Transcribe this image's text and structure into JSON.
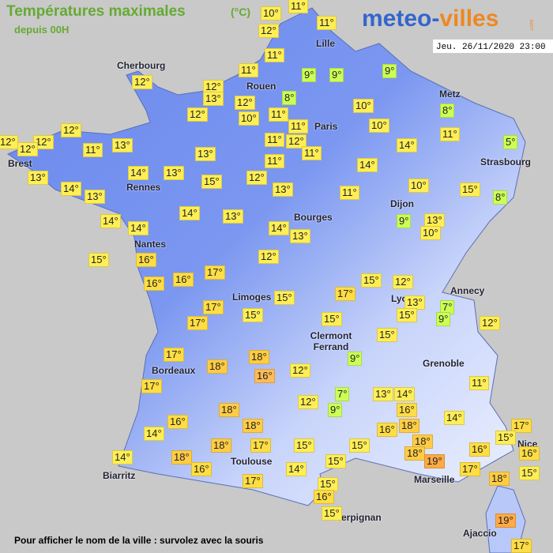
{
  "header": {
    "title": "Températures maximales",
    "unit": "(°C)",
    "subtitle": "depuis 00H"
  },
  "logo": {
    "part1": "meteo-",
    "part2": "villes",
    "suffix": ".com"
  },
  "date": "Jeu. 26/11/2020 23:00",
  "cities": [
    {
      "name": "Cherbourg"
    },
    {
      "name": "Rouen"
    },
    {
      "name": "Lille"
    },
    {
      "name": "Paris"
    },
    {
      "name": "Metz"
    },
    {
      "name": "Strasbourg"
    },
    {
      "name": "Brest"
    },
    {
      "name": "Rennes"
    },
    {
      "name": "Nantes"
    },
    {
      "name": "Dijon"
    },
    {
      "name": "Bourges"
    },
    {
      "name": "Limoges"
    },
    {
      "name": "Lyon"
    },
    {
      "name": "Annecy"
    },
    {
      "name": "Clermont Ferrand"
    },
    {
      "name": "Grenoble"
    },
    {
      "name": "Bordeaux"
    },
    {
      "name": "Nice"
    },
    {
      "name": "Toulouse"
    },
    {
      "name": "Biarritz"
    },
    {
      "name": "Marseille"
    },
    {
      "name": "Perpignan"
    },
    {
      "name": "Ajaccio"
    }
  ],
  "temperatures": [
    {
      "label": "11°",
      "color": "#ffee55"
    },
    {
      "label": "10°",
      "color": "#ffee55"
    },
    {
      "label": "11°",
      "color": "#ffee55"
    },
    {
      "label": "12°",
      "color": "#ffee55"
    },
    {
      "label": "11°",
      "color": "#ffee55"
    },
    {
      "label": "9°",
      "color": "#ccff55"
    },
    {
      "label": "9°",
      "color": "#ccff55"
    },
    {
      "label": "9°",
      "color": "#ccff55"
    },
    {
      "label": "12°",
      "color": "#ffee55"
    },
    {
      "label": "12°",
      "color": "#ffee55"
    },
    {
      "label": "11°",
      "color": "#ffee55"
    },
    {
      "label": "13°",
      "color": "#ffee55"
    },
    {
      "label": "12°",
      "color": "#ffee55"
    },
    {
      "label": "8°",
      "color": "#ccff55"
    },
    {
      "label": "10°",
      "color": "#ffee55"
    },
    {
      "label": "8°",
      "color": "#ccff55"
    },
    {
      "label": "12°",
      "color": "#ffee55"
    },
    {
      "label": "10°",
      "color": "#ffee55"
    },
    {
      "label": "11°",
      "color": "#ffee55"
    },
    {
      "label": "11°",
      "color": "#ffee55"
    },
    {
      "label": "10°",
      "color": "#ffee55"
    },
    {
      "label": "12°",
      "color": "#ffee55"
    },
    {
      "label": "12°",
      "color": "#ffee55"
    },
    {
      "label": "12°",
      "color": "#ffee55"
    },
    {
      "label": "12°",
      "color": "#ffee55"
    },
    {
      "label": "11°",
      "color": "#ffee55"
    },
    {
      "label": "13°",
      "color": "#ffee55"
    },
    {
      "label": "11°",
      "color": "#ffee55"
    },
    {
      "label": "12°",
      "color": "#ffee55"
    },
    {
      "label": "11°",
      "color": "#ffee55"
    },
    {
      "label": "14°",
      "color": "#ffee55"
    },
    {
      "label": "5°",
      "color": "#ccff55"
    },
    {
      "label": "11°",
      "color": "#ffee55"
    },
    {
      "label": "13°",
      "color": "#ffee55"
    },
    {
      "label": "11°",
      "color": "#ffee55"
    },
    {
      "label": "14°",
      "color": "#ffee55"
    },
    {
      "label": "13°",
      "color": "#ffee55"
    },
    {
      "label": "14°",
      "color": "#ffee55"
    },
    {
      "label": "13°",
      "color": "#ffee55"
    },
    {
      "label": "15°",
      "color": "#ffee55"
    },
    {
      "label": "12°",
      "color": "#ffee55"
    },
    {
      "label": "10°",
      "color": "#ffee55"
    },
    {
      "label": "15°",
      "color": "#ffee55"
    },
    {
      "label": "14°",
      "color": "#ffee55"
    },
    {
      "label": "13°",
      "color": "#ffee55"
    },
    {
      "label": "13°",
      "color": "#ffee55"
    },
    {
      "label": "11°",
      "color": "#ffee55"
    },
    {
      "label": "8°",
      "color": "#ccff55"
    },
    {
      "label": "14°",
      "color": "#ffee55"
    },
    {
      "label": "13°",
      "color": "#ffee55"
    },
    {
      "label": "9°",
      "color": "#ccff55"
    },
    {
      "label": "13°",
      "color": "#ffee55"
    },
    {
      "label": "14°",
      "color": "#ffee55"
    },
    {
      "label": "14°",
      "color": "#ffee55"
    },
    {
      "label": "14°",
      "color": "#ffee55"
    },
    {
      "label": "13°",
      "color": "#ffee55"
    },
    {
      "label": "10°",
      "color": "#ffee55"
    },
    {
      "label": "15°",
      "color": "#ffee55"
    },
    {
      "label": "16°",
      "color": "#ffdd44"
    },
    {
      "label": "12°",
      "color": "#ffee55"
    },
    {
      "label": "17°",
      "color": "#ffdd44"
    },
    {
      "label": "16°",
      "color": "#ffdd44"
    },
    {
      "label": "16°",
      "color": "#ffdd44"
    },
    {
      "label": "15°",
      "color": "#ffee55"
    },
    {
      "label": "12°",
      "color": "#ffee55"
    },
    {
      "label": "17°",
      "color": "#ffdd44"
    },
    {
      "label": "15°",
      "color": "#ffee55"
    },
    {
      "label": "17°",
      "color": "#ffdd44"
    },
    {
      "label": "13°",
      "color": "#ffee55"
    },
    {
      "label": "7°",
      "color": "#ccff55"
    },
    {
      "label": "17°",
      "color": "#ffdd44"
    },
    {
      "label": "15°",
      "color": "#ffee55"
    },
    {
      "label": "15°",
      "color": "#ffee55"
    },
    {
      "label": "15°",
      "color": "#ffee55"
    },
    {
      "label": "9°",
      "color": "#ccff55"
    },
    {
      "label": "12°",
      "color": "#ffee55"
    },
    {
      "label": "15°",
      "color": "#ffee55"
    },
    {
      "label": "17°",
      "color": "#ffdd44"
    },
    {
      "label": "18°",
      "color": "#ffcc44"
    },
    {
      "label": "18°",
      "color": "#ffcc44"
    },
    {
      "label": "16°",
      "color": "#ffbb55"
    },
    {
      "label": "12°",
      "color": "#ffee55"
    },
    {
      "label": "9°",
      "color": "#ccff55"
    },
    {
      "label": "17°",
      "color": "#ffdd44"
    },
    {
      "label": "12°",
      "color": "#ffee55"
    },
    {
      "label": "7°",
      "color": "#ccff55"
    },
    {
      "label": "13°",
      "color": "#ffee55"
    },
    {
      "label": "14°",
      "color": "#ffee55"
    },
    {
      "label": "11°",
      "color": "#ffee55"
    },
    {
      "label": "9°",
      "color": "#ccff55"
    },
    {
      "label": "18°",
      "color": "#ffcc44"
    },
    {
      "label": "16°",
      "color": "#ffdd44"
    },
    {
      "label": "14°",
      "color": "#ffee55"
    },
    {
      "label": "16°",
      "color": "#ffdd44"
    },
    {
      "label": "18°",
      "color": "#ffcc44"
    },
    {
      "label": "16°",
      "color": "#ffdd44"
    },
    {
      "label": "18°",
      "color": "#ffcc44"
    },
    {
      "label": "17°",
      "color": "#ffdd44"
    },
    {
      "label": "14°",
      "color": "#ffee55"
    },
    {
      "label": "15°",
      "color": "#ffee55"
    },
    {
      "label": "18°",
      "color": "#ffcc44"
    },
    {
      "label": "18°",
      "color": "#ffcc44"
    },
    {
      "label": "17°",
      "color": "#ffdd44"
    },
    {
      "label": "15°",
      "color": "#ffee55"
    },
    {
      "label": "15°",
      "color": "#ffee55"
    },
    {
      "label": "16°",
      "color": "#ffdd44"
    },
    {
      "label": "18°",
      "color": "#ffcc44"
    },
    {
      "label": "19°",
      "color": "#ffaa44"
    },
    {
      "label": "16°",
      "color": "#ffdd44"
    },
    {
      "label": "14°",
      "color": "#ffee55"
    },
    {
      "label": "18°",
      "color": "#ffcc44"
    },
    {
      "label": "15°",
      "color": "#ffee55"
    },
    {
      "label": "16°",
      "color": "#ffdd44"
    },
    {
      "label": "17°",
      "color": "#ffdd44"
    },
    {
      "label": "14°",
      "color": "#ffee55"
    },
    {
      "label": "15°",
      "color": "#ffee55"
    },
    {
      "label": "17°",
      "color": "#ffdd44"
    },
    {
      "label": "18°",
      "color": "#ffcc44"
    },
    {
      "label": "15°",
      "color": "#ffee55"
    },
    {
      "label": "16°",
      "color": "#ffdd44"
    },
    {
      "label": "15°",
      "color": "#ffee55"
    },
    {
      "label": "19°",
      "color": "#ffaa44"
    },
    {
      "label": "17°",
      "color": "#ffdd44"
    }
  ],
  "footer": "Pour afficher le nom de la ville : survolez avec la souris"
}
